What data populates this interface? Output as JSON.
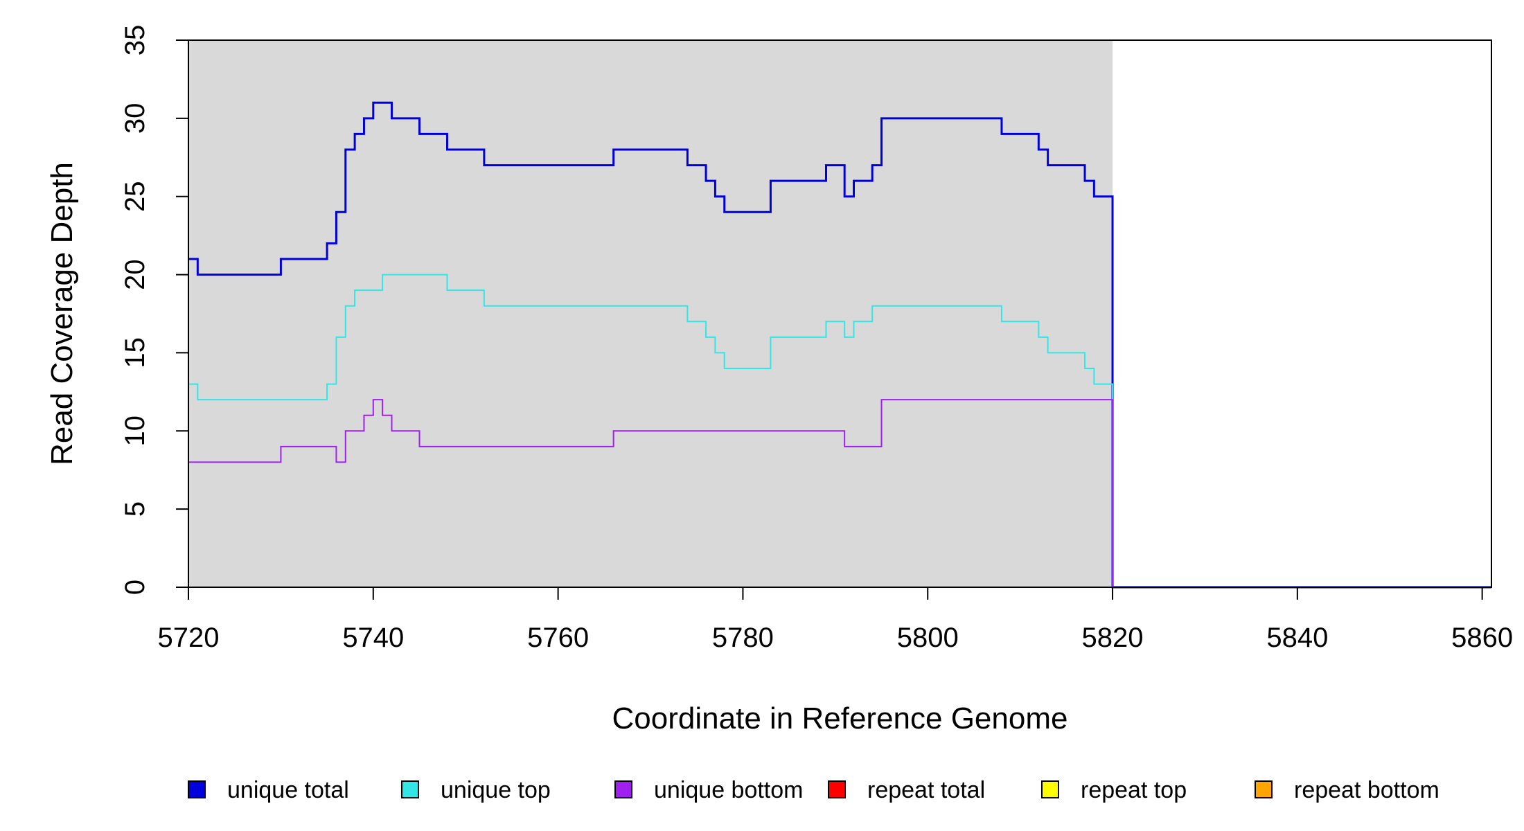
{
  "chart_data": {
    "type": "line",
    "step": true,
    "title": "",
    "xlabel": "Coordinate in Reference Genome",
    "ylabel": "Read Coverage Depth",
    "xlim": [
      5720,
      5861
    ],
    "ylim": [
      0,
      35
    ],
    "x_ticks": [
      5720,
      5740,
      5760,
      5780,
      5800,
      5820,
      5840,
      5860
    ],
    "y_ticks": [
      0,
      5,
      10,
      15,
      20,
      25,
      30,
      35
    ],
    "covered_region": [
      5720,
      5820
    ],
    "grid": false,
    "legend_position": "bottom",
    "colors": {
      "covered_background": "#d9d9d9",
      "axis": "#000000"
    },
    "series": [
      {
        "name": "unique total",
        "color": "#0000dd",
        "width": 3,
        "points": [
          [
            5720,
            21
          ],
          [
            5721,
            20
          ],
          [
            5730,
            21
          ],
          [
            5735,
            22
          ],
          [
            5736,
            24
          ],
          [
            5737,
            28
          ],
          [
            5738,
            29
          ],
          [
            5739,
            30
          ],
          [
            5740,
            31
          ],
          [
            5742,
            30
          ],
          [
            5745,
            29
          ],
          [
            5748,
            28
          ],
          [
            5752,
            27
          ],
          [
            5766,
            28
          ],
          [
            5774,
            27
          ],
          [
            5776,
            26
          ],
          [
            5777,
            25
          ],
          [
            5778,
            24
          ],
          [
            5783,
            26
          ],
          [
            5789,
            27
          ],
          [
            5791,
            25
          ],
          [
            5792,
            26
          ],
          [
            5794,
            27
          ],
          [
            5795,
            30
          ],
          [
            5808,
            29
          ],
          [
            5812,
            28
          ],
          [
            5813,
            27
          ],
          [
            5817,
            26
          ],
          [
            5818,
            25
          ],
          [
            5820,
            0
          ],
          [
            5861,
            0
          ]
        ]
      },
      {
        "name": "unique top",
        "color": "#33e6e6",
        "width": 2,
        "points": [
          [
            5720,
            13
          ],
          [
            5721,
            12
          ],
          [
            5735,
            13
          ],
          [
            5736,
            16
          ],
          [
            5737,
            18
          ],
          [
            5738,
            19
          ],
          [
            5741,
            20
          ],
          [
            5748,
            19
          ],
          [
            5752,
            18
          ],
          [
            5774,
            17
          ],
          [
            5776,
            16
          ],
          [
            5777,
            15
          ],
          [
            5778,
            14
          ],
          [
            5783,
            16
          ],
          [
            5789,
            17
          ],
          [
            5791,
            16
          ],
          [
            5792,
            17
          ],
          [
            5794,
            18
          ],
          [
            5808,
            17
          ],
          [
            5812,
            16
          ],
          [
            5813,
            15
          ],
          [
            5817,
            14
          ],
          [
            5818,
            13
          ],
          [
            5820,
            0
          ],
          [
            5861,
            0
          ]
        ]
      },
      {
        "name": "unique bottom",
        "color": "#a020f0",
        "width": 2,
        "points": [
          [
            5720,
            8
          ],
          [
            5730,
            9
          ],
          [
            5736,
            8
          ],
          [
            5737,
            10
          ],
          [
            5739,
            11
          ],
          [
            5740,
            12
          ],
          [
            5741,
            11
          ],
          [
            5742,
            10
          ],
          [
            5745,
            9
          ],
          [
            5766,
            10
          ],
          [
            5791,
            9
          ],
          [
            5795,
            12
          ],
          [
            5820,
            0
          ],
          [
            5861,
            0
          ]
        ]
      },
      {
        "name": "repeat total",
        "color": "#ff0000",
        "width": 2,
        "points": [
          [
            5720,
            0
          ],
          [
            5820,
            0
          ]
        ]
      },
      {
        "name": "repeat top",
        "color": "#ffff00",
        "width": 2,
        "points": [
          [
            5720,
            0
          ],
          [
            5820,
            0
          ]
        ]
      },
      {
        "name": "repeat bottom",
        "color": "#ffa500",
        "width": 2,
        "points": [
          [
            5720,
            0
          ],
          [
            5820,
            0
          ]
        ]
      }
    ]
  }
}
